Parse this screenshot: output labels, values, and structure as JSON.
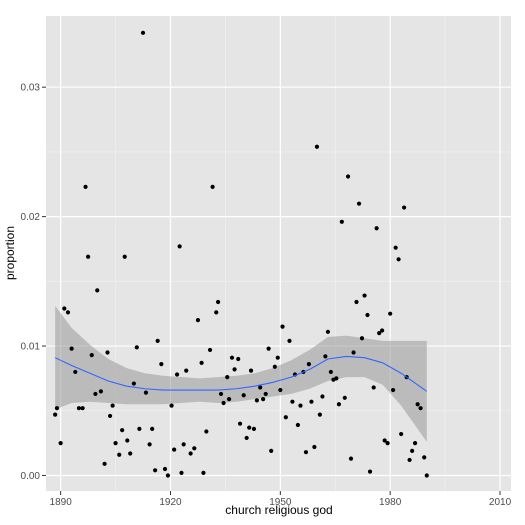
{
  "chart_data": {
    "type": "scatter",
    "xlabel": "church religious god",
    "ylabel": "proportion",
    "xlim": [
      1886,
      2013
    ],
    "ylim": [
      -0.0012,
      0.0355
    ],
    "x_ticks": [
      1890,
      1920,
      1950,
      1980,
      2010
    ],
    "x_tick_labels": [
      "1890",
      "1920",
      "1950",
      "1980",
      "2010"
    ],
    "y_ticks": [
      0,
      0.01,
      0.02,
      0.03
    ],
    "y_tick_labels": [
      "0.00",
      "0.01",
      "0.02",
      "0.03"
    ],
    "grid": true,
    "background": "#e5e5e5",
    "point_color": "#000000",
    "smooth_color": "#3366ff",
    "band_color": "#999999",
    "points": [
      [
        1888.5,
        0.0047
      ],
      [
        1889,
        0.0052
      ],
      [
        1890,
        0.0025
      ],
      [
        1891,
        0.0129
      ],
      [
        1892,
        0.0126
      ],
      [
        1893,
        0.0098
      ],
      [
        1894,
        0.008
      ],
      [
        1895,
        0.0052
      ],
      [
        1896,
        0.0052
      ],
      [
        1896.8,
        0.0223
      ],
      [
        1897.5,
        0.0169
      ],
      [
        1898.5,
        0.0093
      ],
      [
        1899.5,
        0.0063
      ],
      [
        1900,
        0.0143
      ],
      [
        1901,
        0.0065
      ],
      [
        1902,
        0.0009
      ],
      [
        1902.8,
        0.0095
      ],
      [
        1903.5,
        0.0046
      ],
      [
        1904.2,
        0.0054
      ],
      [
        1905,
        0.0025
      ],
      [
        1906,
        0.0016
      ],
      [
        1906.8,
        0.0035
      ],
      [
        1907.5,
        0.0169
      ],
      [
        1908.2,
        0.0027
      ],
      [
        1909,
        0.0017
      ],
      [
        1910,
        0.0071
      ],
      [
        1910.8,
        0.0099
      ],
      [
        1911.5,
        0.0036
      ],
      [
        1912.5,
        0.0342
      ],
      [
        1913.3,
        0.0064
      ],
      [
        1914.3,
        0.0024
      ],
      [
        1915,
        0.0036
      ],
      [
        1915.8,
        0.0004
      ],
      [
        1916.5,
        0.0104
      ],
      [
        1917.5,
        0.0086
      ],
      [
        1918.5,
        0.0005
      ],
      [
        1919.3,
        0.0
      ],
      [
        1920.3,
        0.0054
      ],
      [
        1921,
        0.002
      ],
      [
        1921.8,
        0.0078
      ],
      [
        1922.5,
        0.0177
      ],
      [
        1923,
        0.0002
      ],
      [
        1923.6,
        0.0024
      ],
      [
        1924.3,
        0.0081
      ],
      [
        1925.5,
        0.0017
      ],
      [
        1926.5,
        0.0021
      ],
      [
        1927.5,
        0.012
      ],
      [
        1928.5,
        0.0087
      ],
      [
        1929,
        0.0002
      ],
      [
        1929.8,
        0.0034
      ],
      [
        1930.8,
        0.0097
      ],
      [
        1931.5,
        0.0223
      ],
      [
        1932.5,
        0.0126
      ],
      [
        1933,
        0.0134
      ],
      [
        1933.8,
        0.0063
      ],
      [
        1934.5,
        0.0056
      ],
      [
        1935.5,
        0.0076
      ],
      [
        1936,
        0.0059
      ],
      [
        1936.8,
        0.0091
      ],
      [
        1937.5,
        0.0082
      ],
      [
        1938.5,
        0.009
      ],
      [
        1939,
        0.004
      ],
      [
        1940,
        0.0062
      ],
      [
        1940.8,
        0.0029
      ],
      [
        1941.5,
        0.0037
      ],
      [
        1942,
        0.0081
      ],
      [
        1942.8,
        0.0036
      ],
      [
        1943.6,
        0.0058
      ],
      [
        1944.5,
        0.0068
      ],
      [
        1945.3,
        0.0059
      ],
      [
        1946,
        0.0063
      ],
      [
        1946.8,
        0.0098
      ],
      [
        1947.5,
        0.0019
      ],
      [
        1948.5,
        0.0084
      ],
      [
        1949.3,
        0.0091
      ],
      [
        1950,
        0.0066
      ],
      [
        1950.6,
        0.0115
      ],
      [
        1951.5,
        0.0045
      ],
      [
        1952.5,
        0.0104
      ],
      [
        1953.3,
        0.0057
      ],
      [
        1954,
        0.0078
      ],
      [
        1954.8,
        0.0039
      ],
      [
        1955.5,
        0.0054
      ],
      [
        1956.3,
        0.008
      ],
      [
        1957,
        0.0018
      ],
      [
        1957.8,
        0.0086
      ],
      [
        1958.5,
        0.0057
      ],
      [
        1959.3,
        0.0022
      ],
      [
        1960,
        0.0254
      ],
      [
        1960.8,
        0.0047
      ],
      [
        1961.5,
        0.0061
      ],
      [
        1962.3,
        0.0092
      ],
      [
        1963,
        0.0111
      ],
      [
        1963.8,
        0.008
      ],
      [
        1964.5,
        0.0074
      ],
      [
        1965.3,
        0.0075
      ],
      [
        1966,
        0.0055
      ],
      [
        1966.8,
        0.0196
      ],
      [
        1967.6,
        0.006
      ],
      [
        1968.5,
        0.0231
      ],
      [
        1969.3,
        0.0013
      ],
      [
        1970,
        0.0095
      ],
      [
        1970.8,
        0.0134
      ],
      [
        1971.5,
        0.021
      ],
      [
        1972.3,
        0.0106
      ],
      [
        1973,
        0.0139
      ],
      [
        1973.8,
        0.0124
      ],
      [
        1974.5,
        0.0003
      ],
      [
        1975.5,
        0.0068
      ],
      [
        1976.3,
        0.0191
      ],
      [
        1977,
        0.011
      ],
      [
        1977.8,
        0.0112
      ],
      [
        1978.5,
        0.0027
      ],
      [
        1979.3,
        0.0025
      ],
      [
        1980,
        0.0125
      ],
      [
        1980.8,
        0.0066
      ],
      [
        1981.5,
        0.0176
      ],
      [
        1982.3,
        0.0167
      ],
      [
        1983,
        0.0032
      ],
      [
        1983.8,
        0.0207
      ],
      [
        1984.5,
        0.0076
      ],
      [
        1985.3,
        0.0012
      ],
      [
        1986,
        0.0019
      ],
      [
        1986.8,
        0.0025
      ],
      [
        1987.5,
        0.0055
      ],
      [
        1988.3,
        0.0052
      ],
      [
        1989.3,
        0.0014
      ],
      [
        1990,
        0.0
      ]
    ],
    "smooth": [
      [
        1888.5,
        0.0091
      ],
      [
        1893,
        0.0085
      ],
      [
        1898,
        0.0079
      ],
      [
        1903,
        0.0073
      ],
      [
        1908,
        0.0069
      ],
      [
        1913,
        0.0067
      ],
      [
        1918,
        0.0066
      ],
      [
        1923,
        0.0066
      ],
      [
        1928,
        0.0066
      ],
      [
        1933,
        0.0066
      ],
      [
        1938,
        0.0067
      ],
      [
        1943,
        0.0069
      ],
      [
        1948,
        0.0072
      ],
      [
        1953,
        0.0076
      ],
      [
        1958,
        0.0082
      ],
      [
        1963,
        0.009
      ],
      [
        1968,
        0.0092
      ],
      [
        1973,
        0.0091
      ],
      [
        1978,
        0.0087
      ],
      [
        1983,
        0.0079
      ],
      [
        1988,
        0.0069
      ],
      [
        1990,
        0.0065
      ]
    ],
    "band_upper": [
      [
        1888.5,
        0.0131
      ],
      [
        1893,
        0.0114
      ],
      [
        1898,
        0.0101
      ],
      [
        1903,
        0.009
      ],
      [
        1908,
        0.0083
      ],
      [
        1913,
        0.0079
      ],
      [
        1918,
        0.0077
      ],
      [
        1923,
        0.0076
      ],
      [
        1928,
        0.0075
      ],
      [
        1933,
        0.0076
      ],
      [
        1938,
        0.0077
      ],
      [
        1943,
        0.0079
      ],
      [
        1948,
        0.0083
      ],
      [
        1953,
        0.0089
      ],
      [
        1958,
        0.0097
      ],
      [
        1963,
        0.0107
      ],
      [
        1968,
        0.0108
      ],
      [
        1973,
        0.0106
      ],
      [
        1978,
        0.0104
      ],
      [
        1983,
        0.0104
      ],
      [
        1988,
        0.0104
      ],
      [
        1990,
        0.0104
      ]
    ],
    "band_lower": [
      [
        1888.5,
        0.0051
      ],
      [
        1893,
        0.0056
      ],
      [
        1898,
        0.0057
      ],
      [
        1903,
        0.0056
      ],
      [
        1908,
        0.0055
      ],
      [
        1913,
        0.0055
      ],
      [
        1918,
        0.0055
      ],
      [
        1923,
        0.0056
      ],
      [
        1928,
        0.0057
      ],
      [
        1933,
        0.0056
      ],
      [
        1938,
        0.0057
      ],
      [
        1943,
        0.0059
      ],
      [
        1948,
        0.0061
      ],
      [
        1953,
        0.0063
      ],
      [
        1958,
        0.0067
      ],
      [
        1963,
        0.0073
      ],
      [
        1968,
        0.0076
      ],
      [
        1973,
        0.0076
      ],
      [
        1978,
        0.007
      ],
      [
        1983,
        0.0054
      ],
      [
        1988,
        0.0034
      ],
      [
        1990,
        0.0026
      ]
    ]
  }
}
